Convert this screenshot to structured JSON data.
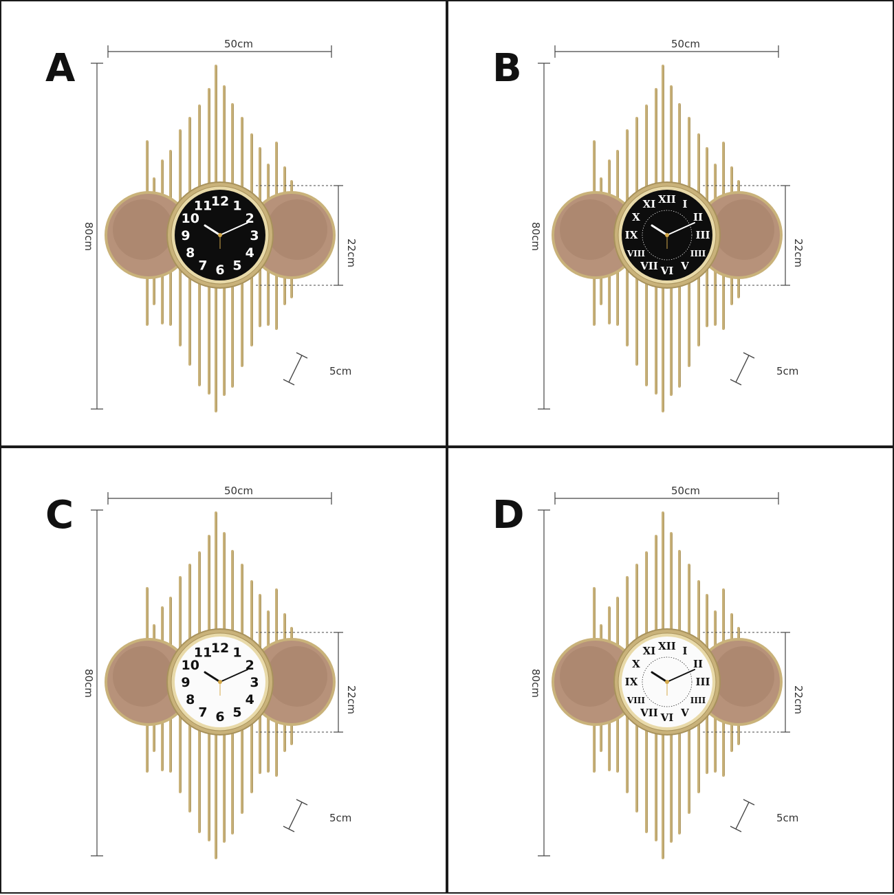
{
  "panels": [
    {
      "label": "A",
      "dial": "black",
      "numerals": [
        "12",
        "1",
        "2",
        "3",
        "4",
        "5",
        "6",
        "7",
        "8",
        "9",
        "10",
        "11"
      ],
      "width_label": "50cm",
      "height_label": "80cm",
      "dial_label": "22cm",
      "depth_label": "5cm"
    },
    {
      "label": "B",
      "dial": "black",
      "numerals": [
        "XII",
        "I",
        "II",
        "III",
        "IIII",
        "V",
        "VI",
        "VII",
        "VIII",
        "IX",
        "X",
        "XI"
      ],
      "width_label": "50cm",
      "height_label": "80cm",
      "dial_label": "22cm",
      "depth_label": "5cm"
    },
    {
      "label": "C",
      "dial": "white",
      "numerals": [
        "12",
        "1",
        "2",
        "3",
        "4",
        "5",
        "6",
        "7",
        "8",
        "9",
        "10",
        "11"
      ],
      "width_label": "50cm",
      "height_label": "80cm",
      "dial_label": "22cm",
      "depth_label": "5cm"
    },
    {
      "label": "D",
      "dial": "white",
      "numerals": [
        "XII",
        "I",
        "II",
        "III",
        "IIII",
        "V",
        "VI",
        "VII",
        "VIII",
        "IX",
        "X",
        "XI"
      ],
      "width_label": "50cm",
      "height_label": "80cm",
      "dial_label": "22cm",
      "depth_label": "5cm"
    }
  ],
  "colors": {
    "gold": "#c9b27a",
    "gold_dark": "#a8925c",
    "disc": "#b7927a",
    "disc_dark": "#8f6a55",
    "dial_black": "#0d0d0d",
    "dial_white": "#fbfbfb",
    "dim_line": "#444444"
  }
}
